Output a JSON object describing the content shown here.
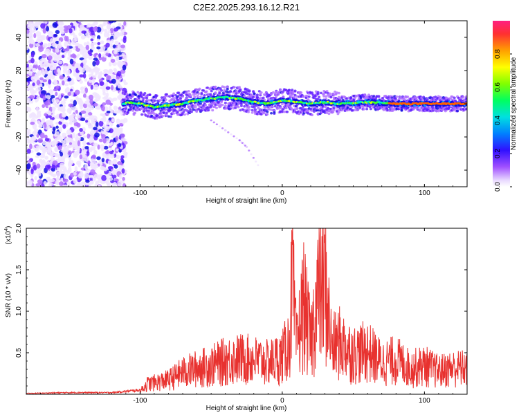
{
  "title": "C2E2.2025.293.16.12.R21",
  "chart_data": [
    {
      "type": "heatmap",
      "xlabel": "Height of straight line (km)",
      "ylabel": "Frequency (Hz)",
      "xlim": [
        -180,
        130
      ],
      "ylim": [
        -50,
        50
      ],
      "xticks": [
        -100,
        0,
        100
      ],
      "xtick_labels": [
        "-100",
        "0",
        "100"
      ],
      "yticks": [
        -40,
        -20,
        0,
        20,
        40
      ],
      "ytick_labels": [
        "-40",
        "-20",
        "0",
        "20",
        "40"
      ],
      "colorbar": {
        "label": "Normalized spectral amplitude",
        "range": [
          0,
          1
        ],
        "ticks": [
          0.0,
          0.2,
          0.4,
          0.6,
          0.8
        ],
        "tick_labels": [
          "0.0",
          "0.2",
          "0.4",
          "0.6",
          "0.8"
        ]
      },
      "features": {
        "noise_region_x": [
          -180,
          -110
        ],
        "main_band": [
          {
            "x": -110,
            "f": 1
          },
          {
            "x": -100,
            "f": 0
          },
          {
            "x": -90,
            "f": -2
          },
          {
            "x": -80,
            "f": -1
          },
          {
            "x": -70,
            "f": 0
          },
          {
            "x": -60,
            "f": 2
          },
          {
            "x": -50,
            "f": 3
          },
          {
            "x": -40,
            "f": 4
          },
          {
            "x": -30,
            "f": 3
          },
          {
            "x": -20,
            "f": 1
          },
          {
            "x": -10,
            "f": 0
          },
          {
            "x": 0,
            "f": 2
          },
          {
            "x": 10,
            "f": 1
          },
          {
            "x": 20,
            "f": 0
          },
          {
            "x": 30,
            "f": 1
          },
          {
            "x": 40,
            "f": 0
          },
          {
            "x": 60,
            "f": 1
          },
          {
            "x": 80,
            "f": 0
          },
          {
            "x": 100,
            "f": 0
          },
          {
            "x": 130,
            "f": 0
          }
        ],
        "diagonal_trace": [
          {
            "x": -50,
            "f": -10
          },
          {
            "x": -40,
            "f": -16
          },
          {
            "x": -30,
            "f": -22
          },
          {
            "x": -25,
            "f": -26
          },
          {
            "x": -17,
            "f": -37
          }
        ]
      }
    },
    {
      "type": "line",
      "xlabel": "Height of straight line (km)",
      "ylabel": "SNR (10 * v/v)",
      "multiplier": "(x10",
      "multiplier_exp": "4",
      "multiplier_close": ")",
      "xlim": [
        -180,
        130
      ],
      "ylim": [
        0,
        2.0
      ],
      "xticks": [
        -100,
        0,
        100
      ],
      "xtick_labels": [
        "-100",
        "0",
        "100"
      ],
      "yticks": [
        0.5,
        1.0,
        1.5,
        2.0
      ],
      "ytick_labels": [
        "0.5",
        "1.0",
        "1.5",
        "2.0"
      ],
      "color": "#e8322f",
      "series": [
        {
          "name": "SNR",
          "x": [
            -180,
            -150,
            -120,
            -100,
            -95,
            -90,
            -80,
            -70,
            -60,
            -50,
            -40,
            -30,
            -20,
            -10,
            0,
            5,
            7,
            10,
            15,
            20,
            25,
            30,
            35,
            40,
            50,
            60,
            70,
            80,
            90,
            100,
            110,
            120,
            130
          ],
          "y": [
            0.01,
            0.02,
            0.02,
            0.05,
            0.18,
            0.2,
            0.25,
            0.38,
            0.45,
            0.5,
            0.58,
            0.62,
            0.6,
            0.55,
            0.65,
            0.9,
            2.0,
            0.8,
            1.6,
            0.9,
            1.7,
            1.9,
            0.8,
            0.9,
            0.7,
            0.75,
            0.55,
            0.6,
            0.45,
            0.5,
            0.4,
            0.45,
            0.45
          ]
        }
      ]
    }
  ]
}
